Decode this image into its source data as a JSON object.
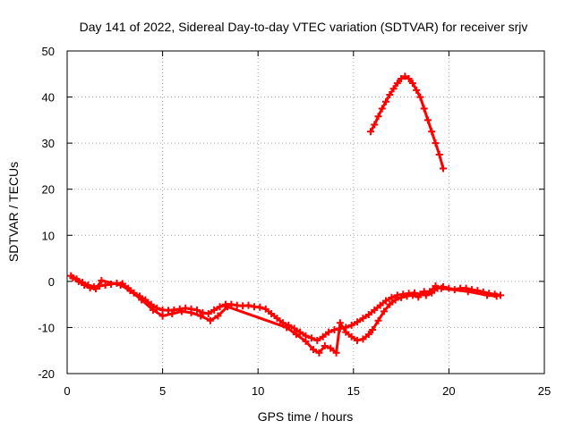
{
  "chart_data": {
    "type": "scatter",
    "title": "Day 141 of 2022, Sidereal Day-to-day VTEC variation (SDTVAR) for receiver srjv",
    "xlabel": "GPS time / hours",
    "ylabel": "SDTVAR / TECUs",
    "xlim": [
      0,
      25
    ],
    "ylim": [
      -20,
      50
    ],
    "xticks": [
      0,
      5,
      10,
      15,
      20,
      25
    ],
    "yticks": [
      -20,
      -10,
      0,
      10,
      20,
      30,
      40,
      50
    ],
    "grid": true,
    "marker": "+",
    "color": "#ff0000",
    "series": [
      {
        "name": "main-trace",
        "points": [
          [
            0.2,
            1.2
          ],
          [
            0.5,
            0.5
          ],
          [
            0.8,
            -0.2
          ],
          [
            1.1,
            -0.8
          ],
          [
            1.4,
            -1.2
          ],
          [
            1.7,
            -1.0
          ],
          [
            2.0,
            -0.8
          ],
          [
            2.3,
            -0.6
          ],
          [
            2.6,
            -0.4
          ],
          [
            2.9,
            -0.5
          ],
          [
            3.2,
            -1.5
          ],
          [
            3.5,
            -2.5
          ],
          [
            3.8,
            -3.2
          ],
          [
            4.1,
            -4.0
          ],
          [
            4.4,
            -5.0
          ],
          [
            4.7,
            -5.8
          ],
          [
            5.0,
            -6.2
          ],
          [
            5.3,
            -6.3
          ],
          [
            5.6,
            -6.2
          ],
          [
            5.9,
            -6.0
          ],
          [
            6.2,
            -5.8
          ],
          [
            6.5,
            -6.0
          ],
          [
            6.8,
            -6.2
          ],
          [
            7.1,
            -6.8
          ],
          [
            7.4,
            -7.0
          ],
          [
            7.7,
            -6.2
          ],
          [
            8.0,
            -5.5
          ],
          [
            8.3,
            -5.0
          ],
          [
            8.6,
            -5.0
          ],
          [
            8.9,
            -5.2
          ],
          [
            9.2,
            -5.3
          ],
          [
            9.5,
            -5.2
          ],
          [
            9.8,
            -5.5
          ],
          [
            10.1,
            -5.6
          ],
          [
            10.4,
            -6.0
          ],
          [
            10.7,
            -7.0
          ],
          [
            11.0,
            -8.0
          ],
          [
            11.3,
            -9.0
          ],
          [
            11.6,
            -9.5
          ],
          [
            11.9,
            -10.2
          ],
          [
            12.2,
            -11.0
          ],
          [
            12.5,
            -11.8
          ],
          [
            12.8,
            -12.3
          ],
          [
            13.1,
            -12.8
          ],
          [
            13.4,
            -12.0
          ],
          [
            13.7,
            -11.0
          ],
          [
            14.0,
            -10.5
          ],
          [
            14.3,
            -10.2
          ],
          [
            14.6,
            -10.0
          ],
          [
            14.9,
            -9.5
          ],
          [
            15.2,
            -8.8
          ],
          [
            15.5,
            -8.0
          ],
          [
            15.8,
            -7.2
          ],
          [
            16.1,
            -6.2
          ],
          [
            16.4,
            -5.2
          ],
          [
            16.7,
            -4.2
          ],
          [
            17.0,
            -3.5
          ],
          [
            17.3,
            -3.0
          ],
          [
            17.6,
            -2.8
          ],
          [
            17.9,
            -2.6
          ],
          [
            18.2,
            -2.5
          ],
          [
            18.5,
            -2.8
          ],
          [
            18.8,
            -3.0
          ],
          [
            19.1,
            -2.5
          ],
          [
            19.4,
            -1.5
          ],
          [
            19.7,
            -1.2
          ],
          [
            20.0,
            -1.5
          ],
          [
            20.3,
            -1.8
          ],
          [
            20.6,
            -1.5
          ],
          [
            20.9,
            -1.5
          ],
          [
            21.2,
            -1.8
          ],
          [
            21.5,
            -2.0
          ],
          [
            21.8,
            -2.3
          ],
          [
            22.1,
            -2.6
          ],
          [
            22.4,
            -2.8
          ],
          [
            22.7,
            -3.0
          ]
        ]
      },
      {
        "name": "secondary-trace",
        "points": [
          [
            0.3,
            0.8
          ],
          [
            0.6,
            0.0
          ],
          [
            0.9,
            -0.8
          ],
          [
            1.2,
            -1.4
          ],
          [
            1.5,
            -1.6
          ],
          [
            1.8,
            0.2
          ],
          [
            2.8,
            -0.8
          ],
          [
            3.3,
            -2.0
          ],
          [
            3.9,
            -4.0
          ],
          [
            4.5,
            -6.2
          ],
          [
            5.0,
            -7.5
          ],
          [
            5.5,
            -7.0
          ],
          [
            6.0,
            -6.5
          ],
          [
            6.5,
            -6.8
          ],
          [
            7.0,
            -7.5
          ],
          [
            7.5,
            -8.5
          ],
          [
            7.9,
            -7.5
          ],
          [
            8.4,
            -5.5
          ],
          [
            11.5,
            -10.0
          ],
          [
            12.0,
            -11.5
          ],
          [
            12.5,
            -13.0
          ],
          [
            12.9,
            -14.8
          ],
          [
            13.2,
            -15.5
          ],
          [
            13.5,
            -14.0
          ],
          [
            13.8,
            -14.5
          ],
          [
            14.1,
            -15.5
          ],
          [
            14.3,
            -9.0
          ],
          [
            14.6,
            -11.0
          ],
          [
            14.9,
            -12.0
          ],
          [
            15.2,
            -12.8
          ],
          [
            15.5,
            -12.5
          ],
          [
            15.8,
            -11.5
          ],
          [
            16.0,
            -10.5
          ],
          [
            16.3,
            -8.5
          ],
          [
            16.6,
            -6.5
          ],
          [
            16.9,
            -5.0
          ],
          [
            17.2,
            -4.0
          ],
          [
            17.5,
            -3.5
          ],
          [
            17.8,
            -3.2
          ],
          [
            18.1,
            -3.0
          ],
          [
            18.4,
            -3.4
          ],
          [
            18.7,
            -2.2
          ],
          [
            19.0,
            -2.2
          ],
          [
            19.3,
            -1.0
          ],
          [
            19.6,
            -1.5
          ],
          [
            21.0,
            -2.2
          ],
          [
            22.0,
            -3.0
          ],
          [
            22.5,
            -3.2
          ]
        ]
      },
      {
        "name": "arc-trace",
        "points": [
          [
            15.9,
            32.5
          ],
          [
            16.1,
            34.0
          ],
          [
            16.3,
            35.8
          ],
          [
            16.5,
            37.5
          ],
          [
            16.7,
            39.0
          ],
          [
            16.9,
            40.5
          ],
          [
            17.1,
            41.8
          ],
          [
            17.3,
            43.0
          ],
          [
            17.5,
            44.0
          ],
          [
            17.7,
            44.5
          ],
          [
            17.9,
            44.0
          ],
          [
            18.1,
            43.0
          ],
          [
            18.3,
            41.5
          ],
          [
            18.5,
            40.0
          ],
          [
            18.7,
            37.5
          ],
          [
            18.9,
            35.0
          ],
          [
            19.1,
            32.5
          ],
          [
            19.3,
            30.0
          ],
          [
            19.5,
            27.5
          ],
          [
            19.7,
            24.5
          ]
        ]
      }
    ]
  }
}
